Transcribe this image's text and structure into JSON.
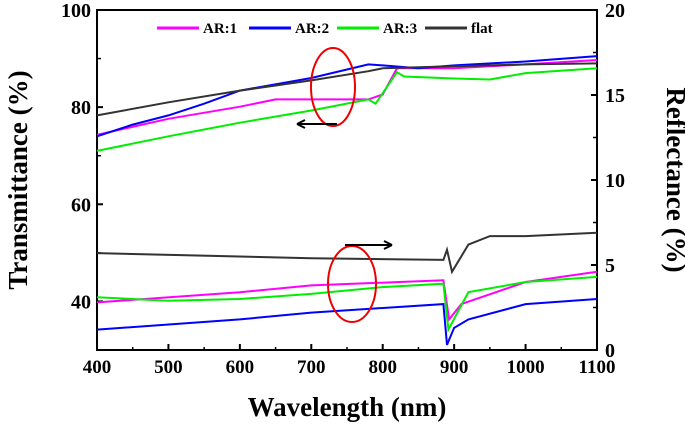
{
  "chart_data": {
    "type": "line",
    "xlabel": "Wavelength (nm)",
    "ylabel_left": "Transmittance (%)",
    "ylabel_right": "Reflectance (%)",
    "xlim": [
      400,
      1100
    ],
    "ylim_left": [
      30,
      100
    ],
    "ylim_right": [
      0,
      20
    ],
    "xticks": [
      400,
      500,
      600,
      700,
      800,
      900,
      1000,
      1100
    ],
    "yticks_left": [
      40,
      60,
      80,
      100
    ],
    "yticks_right": [
      0,
      5,
      10,
      15,
      20
    ],
    "grid": false,
    "legend_position": "top",
    "colors": {
      "AR:1": "#ff00ff",
      "AR:2": "#0000ff",
      "AR:3": "#00ee00",
      "flat": "#333333"
    },
    "transmittance": [
      {
        "name": "AR:1",
        "x": [
          400,
          500,
          600,
          650,
          700,
          780,
          800,
          820,
          900,
          1000,
          1100
        ],
        "y": [
          74.3,
          77.6,
          80.1,
          81.6,
          81.6,
          81.6,
          82.6,
          88,
          88,
          88.8,
          89.7
        ]
      },
      {
        "name": "AR:2",
        "x": [
          400,
          450,
          500,
          550,
          600,
          700,
          780,
          800,
          850,
          900,
          1000,
          1100
        ],
        "y": [
          74,
          76.4,
          78.3,
          80.7,
          83.4,
          86,
          88.8,
          88.6,
          88,
          88.6,
          89.4,
          90.5
        ]
      },
      {
        "name": "AR:3",
        "x": [
          400,
          500,
          600,
          700,
          780,
          790,
          820,
          830,
          900,
          950,
          1000,
          1100
        ],
        "y": [
          71,
          74,
          76.8,
          79.3,
          81.6,
          80.7,
          87.2,
          86.3,
          85.9,
          85.7,
          87,
          88
        ]
      },
      {
        "name": "flat",
        "x": [
          400,
          500,
          600,
          700,
          780,
          800,
          900,
          1000,
          1100
        ],
        "y": [
          78.3,
          81,
          83.4,
          85.5,
          87.4,
          88,
          88.4,
          88.8,
          89
        ]
      }
    ],
    "reflectance": [
      {
        "name": "AR:1",
        "x": [
          400,
          600,
          700,
          885,
          893,
          910,
          1000,
          1100
        ],
        "y": [
          2.8,
          3.4,
          3.8,
          4.1,
          1.8,
          2.7,
          4.0,
          4.6
        ]
      },
      {
        "name": "AR:2",
        "x": [
          400,
          600,
          700,
          885,
          890,
          900,
          920,
          1000,
          1100
        ],
        "y": [
          1.2,
          1.8,
          2.2,
          2.7,
          0.3,
          1.3,
          1.8,
          2.7,
          3.0
        ]
      },
      {
        "name": "AR:3",
        "x": [
          400,
          500,
          600,
          700,
          800,
          885,
          892,
          920,
          1000,
          1100
        ],
        "y": [
          3.1,
          2.9,
          3.0,
          3.3,
          3.7,
          3.9,
          1.2,
          3.4,
          4.0,
          4.3
        ]
      },
      {
        "name": "flat",
        "x": [
          400,
          700,
          885,
          890,
          897,
          920,
          950,
          1000,
          1100
        ],
        "y": [
          5.7,
          5.4,
          5.3,
          5.9,
          4.6,
          6.2,
          6.7,
          6.7,
          6.9
        ]
      }
    ],
    "legend": [
      "AR:1",
      "AR:2",
      "AR:3",
      "flat"
    ]
  }
}
